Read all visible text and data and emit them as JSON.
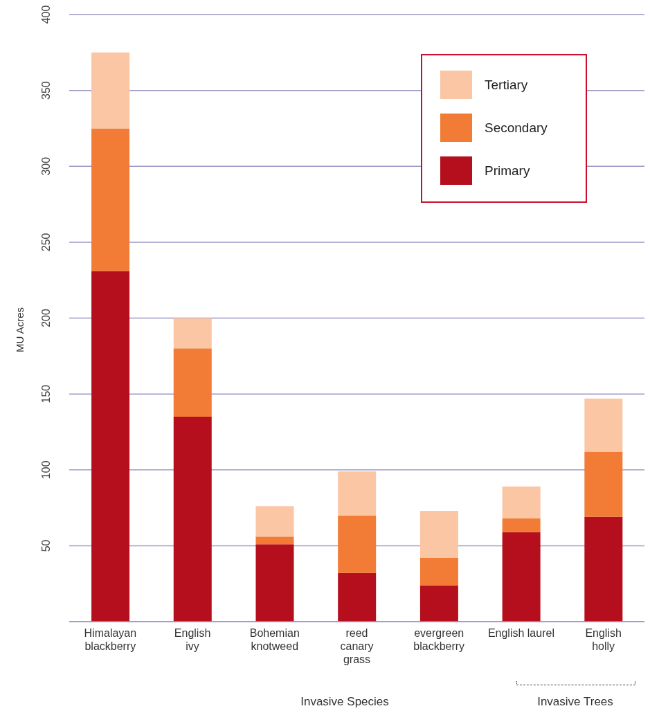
{
  "chart_data": {
    "type": "bar",
    "stacked": true,
    "categories": [
      "Himalayan\nblackberry",
      "English\nivy",
      "Bohemian\nknotweed",
      "reed\ncanary\ngrass",
      "evergreen\nblackberry",
      "English laurel",
      "English\nholly"
    ],
    "series": [
      {
        "name": "Primary",
        "color": "#b50e1c",
        "values": [
          231,
          135,
          51,
          32,
          24,
          59,
          69
        ]
      },
      {
        "name": "Secondary",
        "color": "#f27b35",
        "values": [
          94,
          45,
          5,
          38,
          18,
          9,
          43
        ]
      },
      {
        "name": "Tertiary",
        "color": "#fac6a4",
        "values": [
          50,
          20,
          20,
          29,
          31,
          21,
          35
        ]
      }
    ],
    "ylabel": "MU Acres",
    "ylim": [
      0,
      400
    ],
    "yticks": [
      50,
      100,
      150,
      200,
      250,
      300,
      350,
      400
    ],
    "grid": "y",
    "legend": "top right",
    "annotations": [
      "Invasive Species",
      "Invasive Trees"
    ]
  }
}
